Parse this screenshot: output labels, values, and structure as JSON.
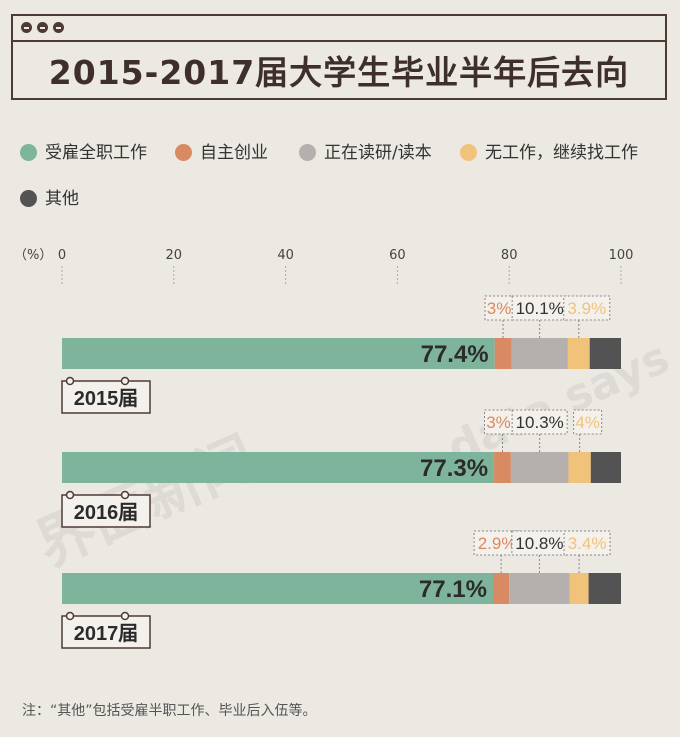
{
  "title": "2015-2017届大学生毕业半年后去向",
  "note": "注：“其他”包括受雇半职工作、毕业后入伍等。",
  "watermarks": [
    "界面新闻",
    "data says"
  ],
  "chart_data": {
    "type": "bar",
    "stacked": true,
    "orientation": "horizontal",
    "unit_label": "（%）",
    "xlim": [
      0,
      100
    ],
    "x_ticks": [
      "0",
      "20",
      "40",
      "60",
      "80",
      "100"
    ],
    "categories": [
      "2015届",
      "2016届",
      "2017届"
    ],
    "series": [
      {
        "name": "受雇全职工作",
        "color": "#7eb49b",
        "values": [
          77.4,
          77.3,
          77.1
        ],
        "labels": [
          "77.4%",
          "77.3%",
          "77.1%"
        ]
      },
      {
        "name": "自主创业",
        "color": "#d88a62",
        "values": [
          3,
          3,
          2.9
        ],
        "labels": [
          "3%",
          "3%",
          "2.9%"
        ]
      },
      {
        "name": "正在读研/读本",
        "color": "#b5b0ad",
        "values": [
          10.1,
          10.3,
          10.8
        ],
        "labels": [
          "10.1%",
          "10.3%",
          "10.8%"
        ]
      },
      {
        "name": "无工作，继续找工作",
        "color": "#f1c27a",
        "values": [
          3.9,
          4,
          3.4
        ],
        "labels": [
          "3.9%",
          "4%",
          "3.4%"
        ]
      },
      {
        "name": "其他",
        "color": "#535353",
        "values": [
          5.6,
          5.4,
          5.8
        ]
      }
    ]
  }
}
